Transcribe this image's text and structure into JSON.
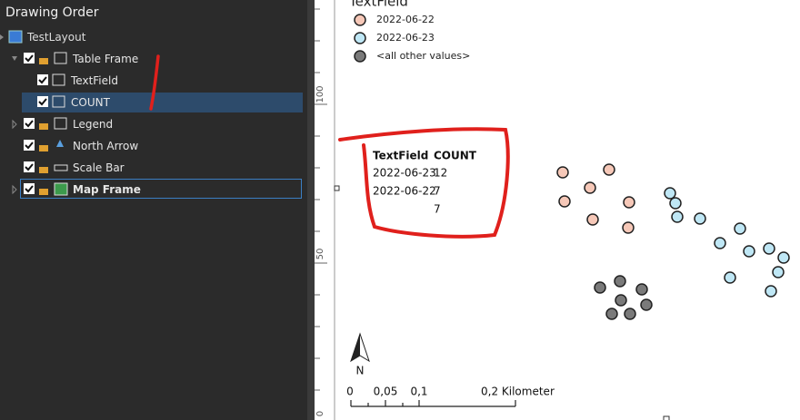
{
  "panel": {
    "title": "Drawing Order",
    "tree": [
      {
        "label": "TestLayout"
      },
      {
        "label": "Table Frame"
      },
      {
        "label": "TextField"
      },
      {
        "label": "COUNT"
      },
      {
        "label": "Legend"
      },
      {
        "label": "North Arrow"
      },
      {
        "label": "Scale Bar"
      },
      {
        "label": "Map Frame"
      }
    ]
  },
  "ruler": {
    "labels": [
      "100",
      "50",
      "0"
    ]
  },
  "legend": {
    "title": "TextField",
    "items": [
      "2022-06-22",
      "2022-06-23",
      "<all other values>"
    ]
  },
  "table": {
    "header": [
      "TextField",
      "COUNT"
    ],
    "rows": [
      {
        "textfield": "2022-06-23",
        "count": 12
      },
      {
        "textfield": "2022-06-22",
        "count": 7
      },
      {
        "count": 7
      }
    ]
  },
  "north_arrow": {
    "label": "N"
  },
  "scale_bar": {
    "labels": [
      "0",
      "0,05",
      "0,1",
      "0,2 Kilometer"
    ]
  }
}
